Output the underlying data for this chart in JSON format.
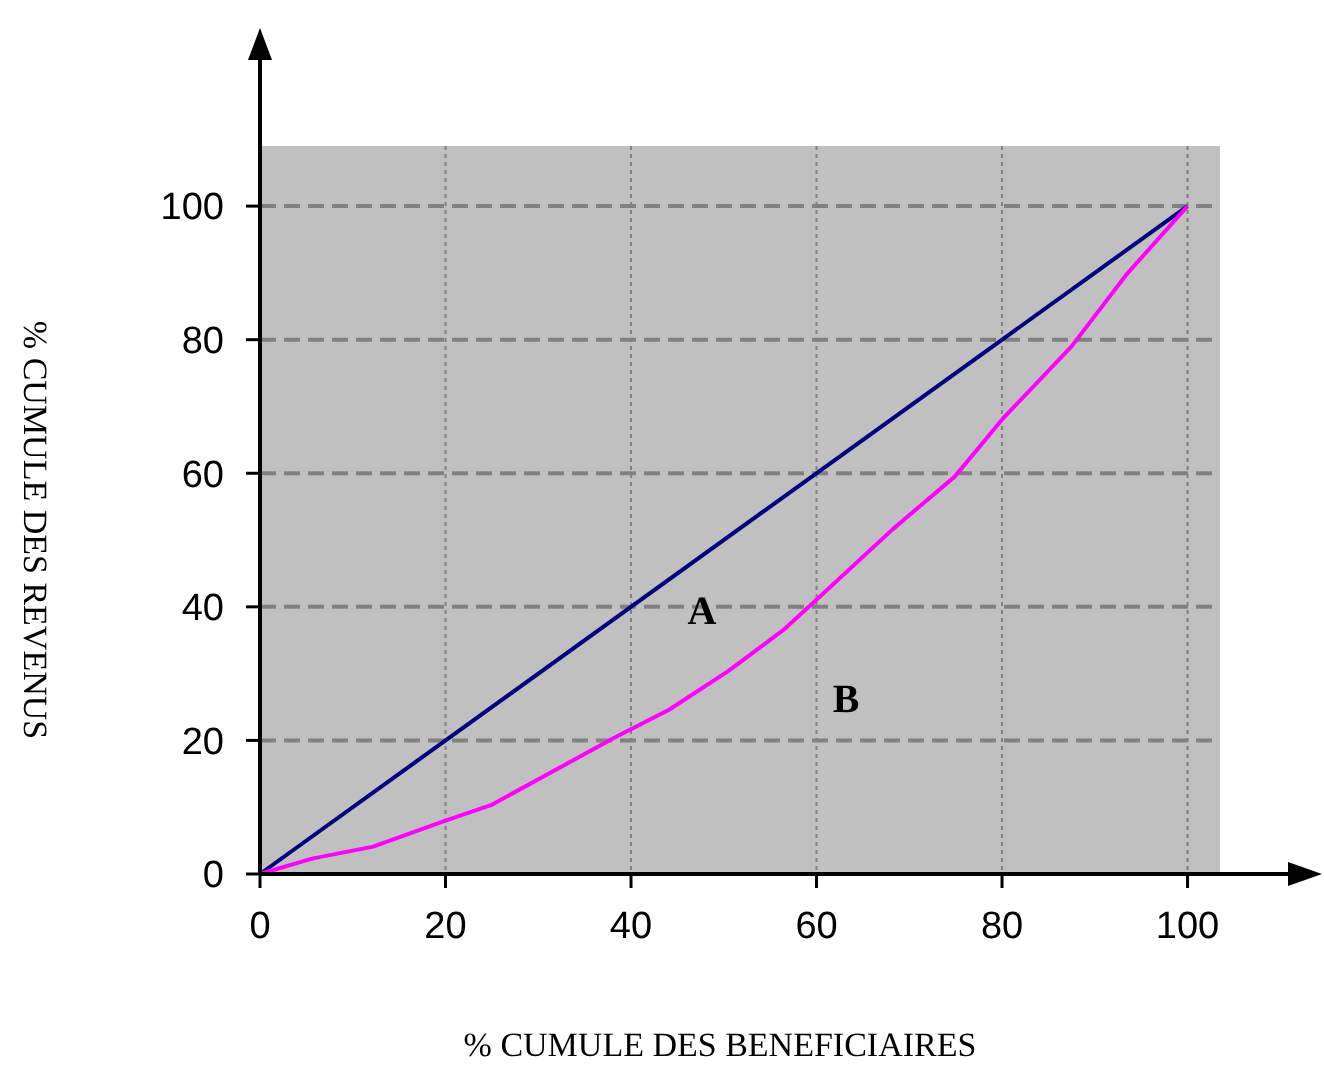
{
  "chart_data": {
    "type": "line",
    "xlabel": "% CUMULE DES BENEFICIAIRES",
    "ylabel": "% CUMULE DES REVENUS",
    "xlim": [
      0,
      103.5
    ],
    "ylim": [
      0,
      109
    ],
    "xticks": [
      0,
      20,
      40,
      60,
      80,
      100
    ],
    "yticks": [
      0,
      20,
      40,
      60,
      80,
      100
    ],
    "grid": true,
    "series": [
      {
        "color": "#000080",
        "x": [
          0,
          100
        ],
        "values": [
          0,
          100
        ]
      },
      {
        "color": "#ff00ff",
        "x": [
          0,
          5.6,
          12.2,
          20,
          24.9,
          38.2,
          44.1,
          50.4,
          56.4,
          59.7,
          68.2,
          74.9,
          80.1,
          87.5,
          93.5,
          100
        ],
        "values": [
          0,
          2.3,
          4.1,
          8,
          10.3,
          20.4,
          24.6,
          30.3,
          36.5,
          40.7,
          51.6,
          59.5,
          68.2,
          79,
          89.9,
          100
        ]
      }
    ],
    "annotations": [
      "A",
      "B"
    ]
  }
}
